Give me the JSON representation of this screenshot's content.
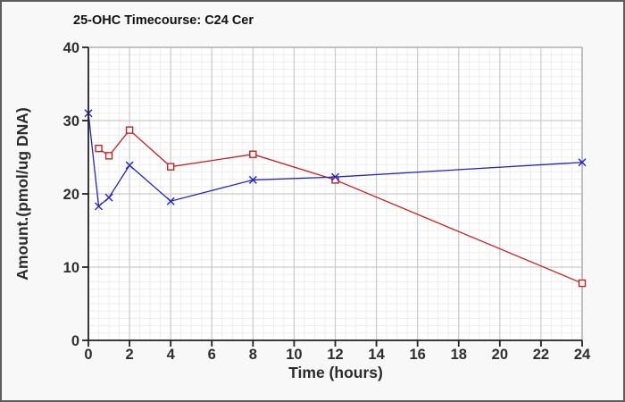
{
  "window": {
    "background": "#f8f8f8",
    "border_color": "#5d5d5d"
  },
  "chart_data": {
    "type": "line",
    "title": "25-OHC Timecourse: C24 Cer",
    "xlabel": "Time (hours)",
    "ylabel": "Amount.(pmol/ug DNA)",
    "xlim": [
      0,
      24
    ],
    "ylim": [
      0,
      40
    ],
    "x_major_ticks": [
      0,
      2,
      4,
      6,
      8,
      10,
      12,
      14,
      16,
      18,
      20,
      22,
      24
    ],
    "y_major_ticks": [
      0,
      10,
      20,
      30,
      40
    ],
    "x_minor_step": 0.5,
    "y_minor_step": 1,
    "grid": "minor+major",
    "legend_position": "none",
    "plot_background": "#ffffff",
    "minor_grid_color": "#ededed",
    "major_grid_color": "#c9c9c9",
    "frame_color": "#b3b3b3",
    "axis_color": "#222222",
    "series": [
      {
        "name": "red-square-series",
        "color": "#cb1f1f",
        "marker": "open-square",
        "x": [
          0.5,
          1,
          2,
          4,
          8,
          12,
          24
        ],
        "y": [
          26.2,
          25.2,
          28.7,
          23.7,
          25.4,
          21.9,
          7.8
        ]
      },
      {
        "name": "blue-x-series",
        "color": "#2323c6",
        "marker": "x",
        "x": [
          0,
          0.5,
          1,
          2,
          4,
          8,
          12,
          24
        ],
        "y": [
          31.0,
          18.3,
          19.5,
          23.9,
          19.0,
          21.9,
          22.3,
          24.3
        ]
      }
    ]
  }
}
